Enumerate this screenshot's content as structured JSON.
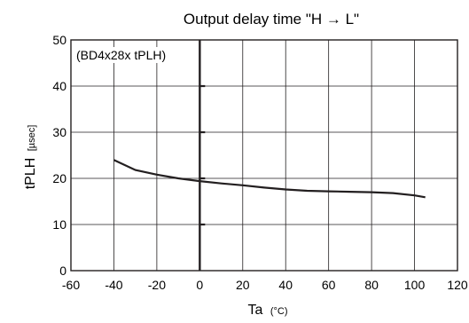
{
  "chart_data": {
    "type": "line",
    "title": "Output delay time \"H → L\"",
    "xlabel": "Ta",
    "xlabel_unit": "(°C)",
    "ylabel": "tPLH",
    "ylabel_unit": "[µsec]",
    "annotation": "(BD4x28x tPLH)",
    "xlim": [
      -60,
      120
    ],
    "ylim": [
      0,
      50
    ],
    "xticks": [
      -60,
      -40,
      -20,
      0,
      20,
      40,
      60,
      80,
      100,
      120
    ],
    "yticks": [
      0,
      10,
      20,
      30,
      40,
      50
    ],
    "grid": true,
    "series": [
      {
        "x": [
          -40,
          -30,
          -20,
          -10,
          0,
          10,
          20,
          30,
          40,
          50,
          60,
          70,
          80,
          90,
          100,
          105
        ],
        "y": [
          24.0,
          21.8,
          20.8,
          20.0,
          19.4,
          18.9,
          18.5,
          18.0,
          17.6,
          17.3,
          17.2,
          17.1,
          17.0,
          16.8,
          16.3,
          15.9
        ]
      }
    ]
  }
}
